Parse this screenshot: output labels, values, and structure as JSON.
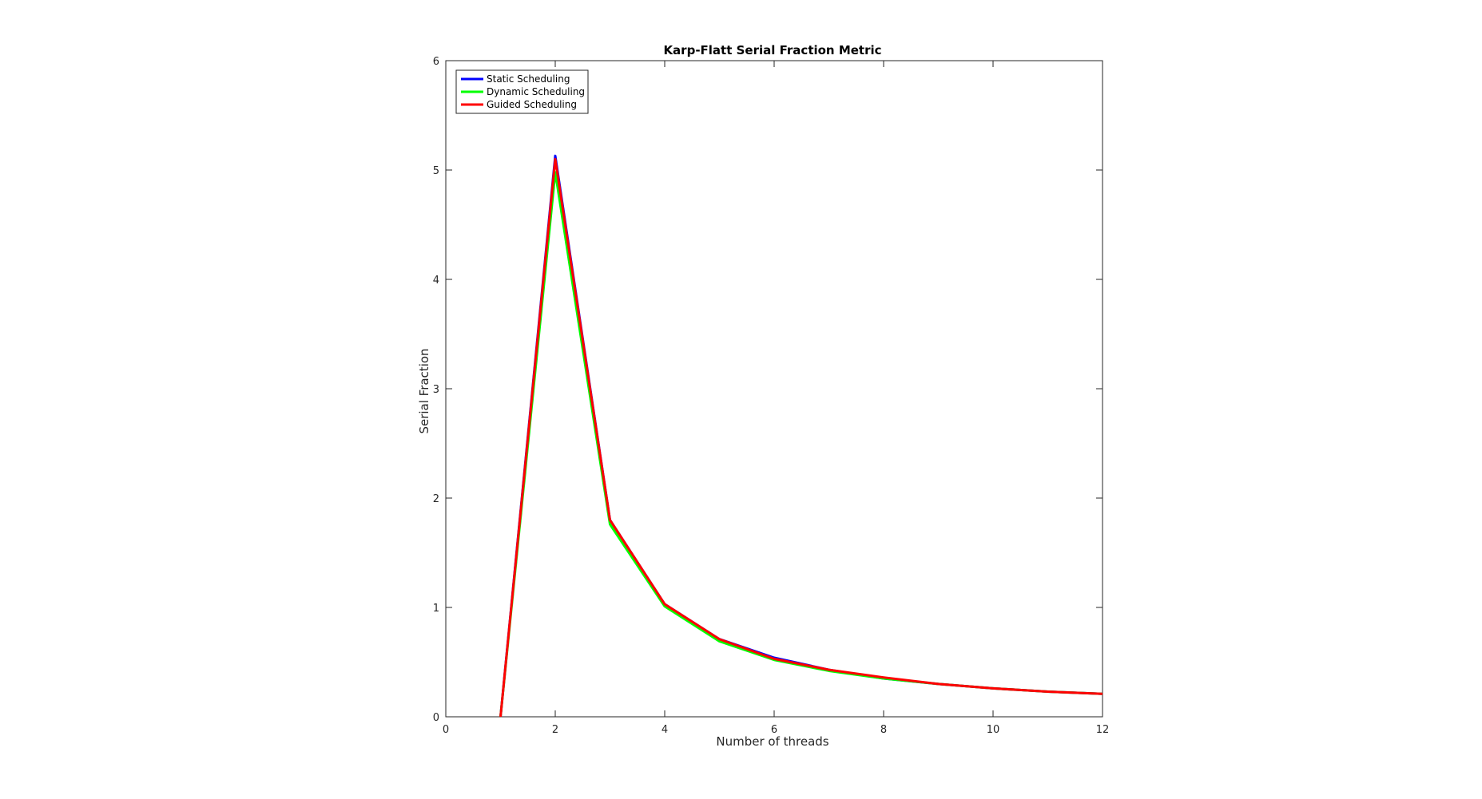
{
  "chart_data": {
    "type": "line",
    "title": "Karp-Flatt Serial Fraction Metric",
    "xlabel": "Number of threads",
    "ylabel": "Serial Fraction",
    "xlim": [
      0,
      12
    ],
    "ylim": [
      0,
      6
    ],
    "xticks": [
      0,
      2,
      4,
      6,
      8,
      10,
      12
    ],
    "yticks": [
      0,
      1,
      2,
      3,
      4,
      5,
      6
    ],
    "grid": false,
    "legend_position": "top-left",
    "x": [
      1,
      2,
      3,
      4,
      5,
      6,
      7,
      8,
      9,
      10,
      11,
      12
    ],
    "series": [
      {
        "name": "Static Scheduling",
        "color": "#0000ff",
        "values": [
          0,
          5.13,
          1.8,
          1.03,
          0.71,
          0.54,
          0.43,
          0.35,
          0.3,
          0.26,
          0.23,
          0.21
        ]
      },
      {
        "name": "Dynamic Scheduling",
        "color": "#00ff00",
        "values": [
          0,
          4.98,
          1.76,
          1.01,
          0.69,
          0.52,
          0.42,
          0.35,
          0.3,
          0.26,
          0.23,
          0.21
        ]
      },
      {
        "name": "Guided Scheduling",
        "color": "#ff0000",
        "values": [
          0,
          5.1,
          1.8,
          1.03,
          0.71,
          0.53,
          0.43,
          0.36,
          0.3,
          0.26,
          0.23,
          0.21
        ]
      }
    ]
  }
}
